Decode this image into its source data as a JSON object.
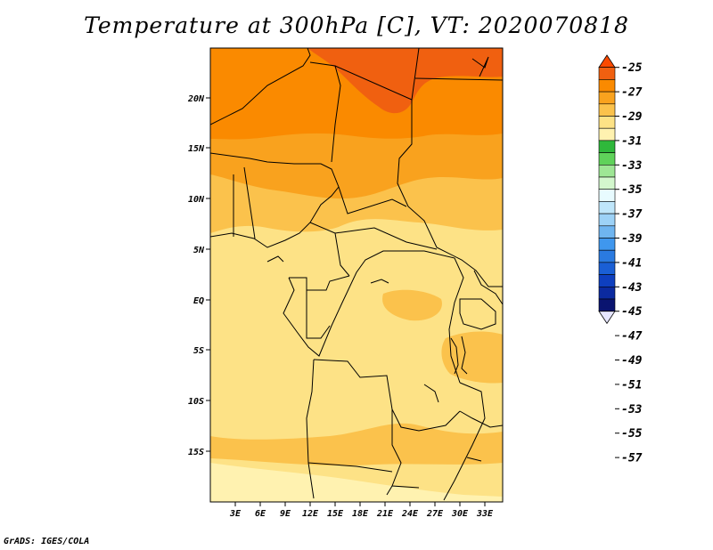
{
  "title": "Temperature at 300hPa [C], VT: 2020070818",
  "credit": "GrADS: IGES/COLA",
  "map": {
    "lat_labels": [
      "20N",
      "15N",
      "10N",
      "5N",
      "EQ",
      "5S",
      "10S",
      "15S"
    ],
    "lon_labels": [
      "3E",
      "6E",
      "9E",
      "12E",
      "15E",
      "18E",
      "21E",
      "24E",
      "27E",
      "30E",
      "33E"
    ],
    "colors": {
      "c_m25": "#f06010",
      "c_m27": "#fa8a00",
      "c_m29": "#f9a21e",
      "c_m31": "#fbc24c",
      "c_m33": "#fde286",
      "c_m35": "#fff2b0",
      "border": "#000000"
    }
  },
  "colorbar": {
    "levels": [
      "-25",
      "-27",
      "-29",
      "-31",
      "-33",
      "-35",
      "-37",
      "-39",
      "-41",
      "-43",
      "-45",
      "-47",
      "-49",
      "-51",
      "-53",
      "-55",
      "-57"
    ],
    "colors": [
      "#fa4a00",
      "#f06010",
      "#fa8a00",
      "#f9a21e",
      "#fbc24c",
      "#fde286",
      "#fff2b0",
      "#2fb83b",
      "#5fd25a",
      "#9ee695",
      "#d3f7cd",
      "#e8fbff",
      "#bfe6fa",
      "#9dd2f7",
      "#6fb5f0",
      "#3f97ee",
      "#2a7ae0",
      "#1a5fd5",
      "#0e3fbf",
      "#0b2aa0",
      "#0a1470",
      "#e6e6ff"
    ]
  }
}
